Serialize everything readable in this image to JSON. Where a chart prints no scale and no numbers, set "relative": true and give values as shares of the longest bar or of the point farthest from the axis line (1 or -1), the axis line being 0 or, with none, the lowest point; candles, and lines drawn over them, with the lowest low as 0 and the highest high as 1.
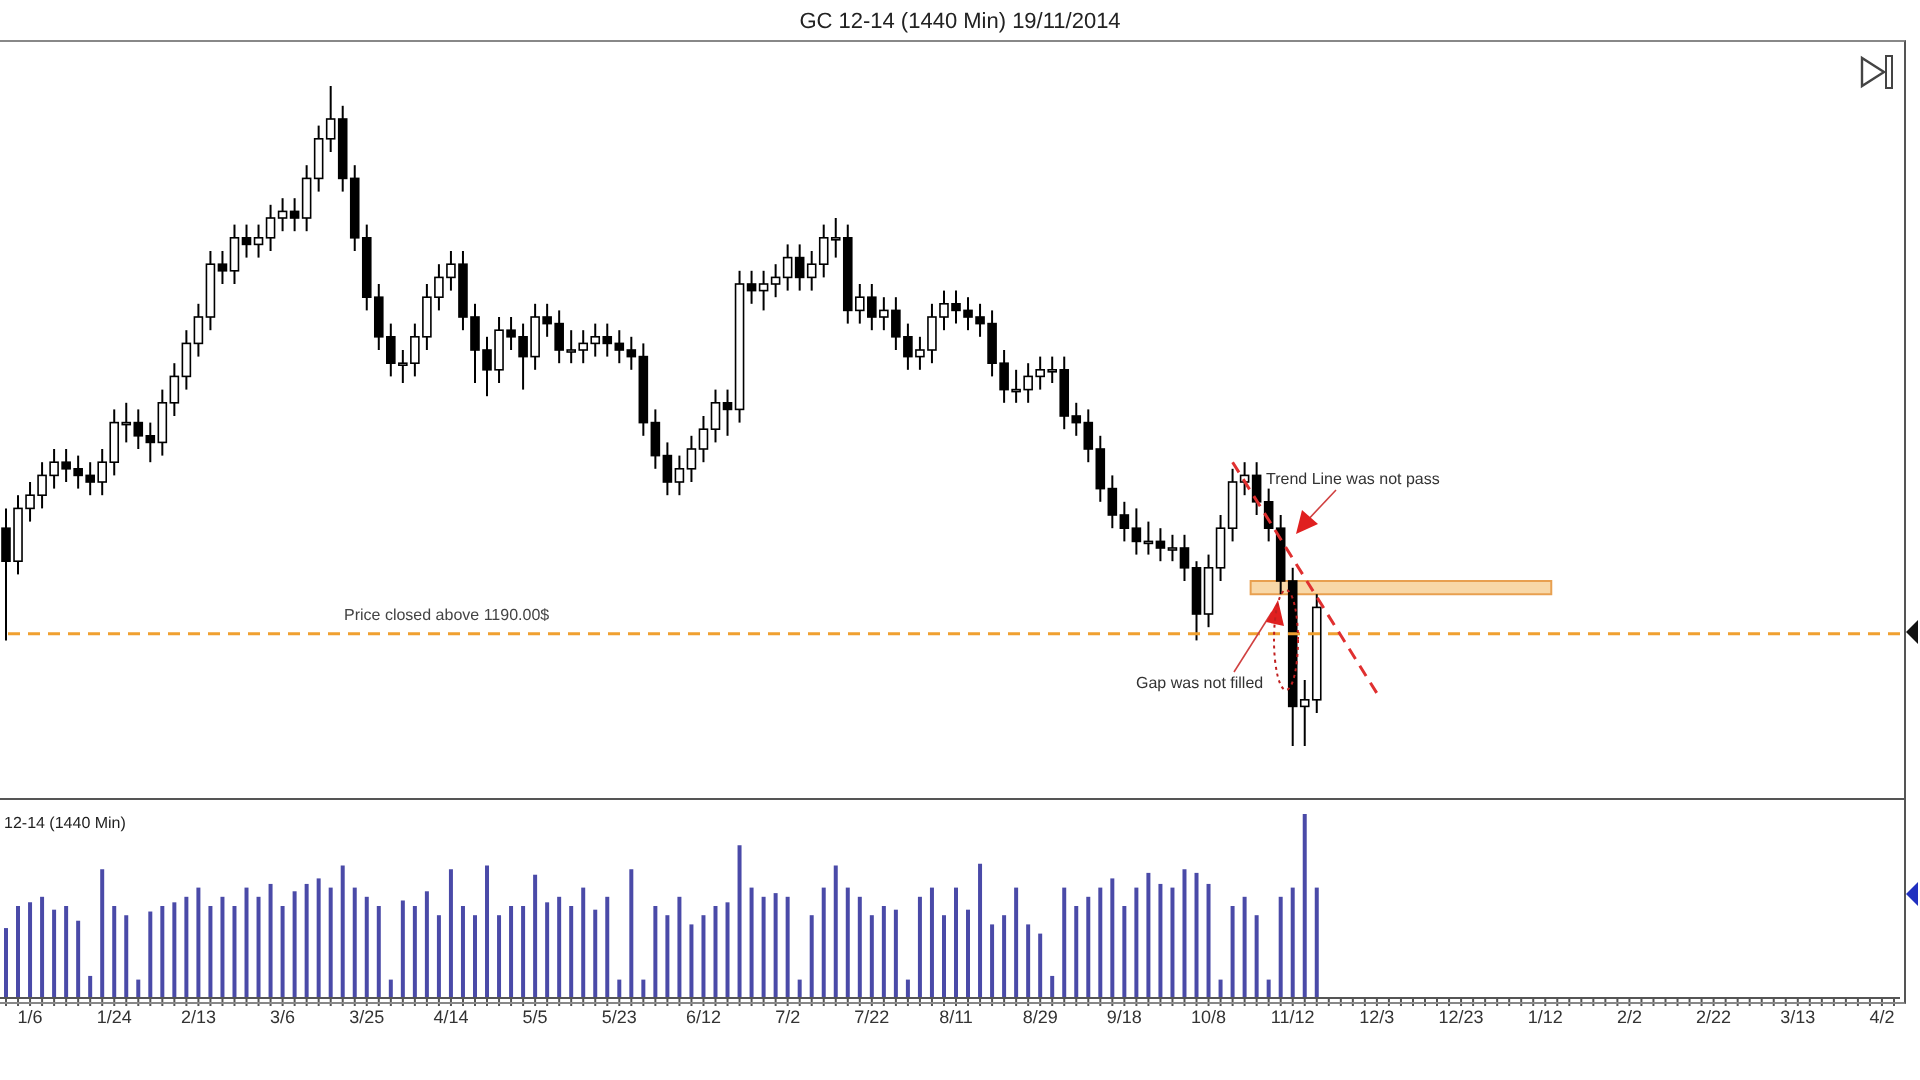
{
  "chart_data": [
    {
      "type": "candlestick",
      "title": "GC 12-14 (1440 Min)  19/11/2014",
      "relative": true,
      "tick_labels": false,
      "color": "#000000",
      "categories": [
        null,
        null,
        null,
        null,
        null,
        null,
        null,
        null,
        null,
        null,
        null,
        null,
        null,
        null,
        null,
        null,
        null,
        null,
        null,
        null,
        null,
        null,
        null,
        null,
        null,
        null,
        null,
        null,
        null,
        null,
        null,
        null,
        null,
        null,
        null,
        null,
        null,
        null,
        null,
        null,
        null,
        null,
        null,
        null,
        null,
        null,
        null,
        null,
        null,
        null,
        null,
        null,
        null,
        null,
        null,
        null,
        null,
        null,
        null,
        null,
        null,
        null,
        null,
        null,
        null,
        null,
        null,
        null,
        null,
        null,
        null,
        null,
        null,
        null,
        null,
        null,
        null,
        null,
        null,
        null,
        null,
        null,
        null,
        null,
        null,
        null,
        null,
        null,
        null,
        null,
        null,
        null,
        null,
        null,
        null,
        null,
        null,
        null,
        null,
        null,
        null,
        null,
        null,
        null,
        null,
        null,
        null,
        null,
        null,
        null,
        null,
        null,
        null,
        null,
        null,
        null,
        null,
        null,
        null,
        null,
        null,
        null,
        null,
        null,
        null,
        null,
        null,
        null,
        null,
        null,
        null,
        null,
        null,
        null,
        null,
        null,
        null,
        null,
        null,
        null,
        null,
        null,
        null,
        null,
        null,
        null,
        null,
        null,
        null,
        null,
        null,
        null,
        null,
        null,
        null,
        null,
        null,
        null
      ],
      "ohlc": [
        [
          0.33,
          0.36,
          0.16,
          0.28
        ],
        [
          0.28,
          0.38,
          0.26,
          0.36
        ],
        [
          0.36,
          0.4,
          0.34,
          0.38
        ],
        [
          0.38,
          0.43,
          0.36,
          0.41
        ],
        [
          0.41,
          0.45,
          0.39,
          0.43
        ],
        [
          0.43,
          0.45,
          0.4,
          0.42
        ],
        [
          0.42,
          0.44,
          0.39,
          0.41
        ],
        [
          0.41,
          0.43,
          0.38,
          0.4
        ],
        [
          0.4,
          0.45,
          0.38,
          0.43
        ],
        [
          0.43,
          0.51,
          0.41,
          0.49
        ],
        [
          0.49,
          0.52,
          0.46,
          0.49
        ],
        [
          0.49,
          0.51,
          0.45,
          0.47
        ],
        [
          0.47,
          0.49,
          0.43,
          0.46
        ],
        [
          0.46,
          0.54,
          0.44,
          0.52
        ],
        [
          0.52,
          0.58,
          0.5,
          0.56
        ],
        [
          0.56,
          0.63,
          0.54,
          0.61
        ],
        [
          0.61,
          0.67,
          0.59,
          0.65
        ],
        [
          0.65,
          0.75,
          0.63,
          0.73
        ],
        [
          0.73,
          0.75,
          0.7,
          0.72
        ],
        [
          0.72,
          0.79,
          0.7,
          0.77
        ],
        [
          0.77,
          0.79,
          0.74,
          0.76
        ],
        [
          0.76,
          0.79,
          0.74,
          0.77
        ],
        [
          0.77,
          0.82,
          0.75,
          0.8
        ],
        [
          0.8,
          0.83,
          0.78,
          0.81
        ],
        [
          0.81,
          0.83,
          0.78,
          0.8
        ],
        [
          0.8,
          0.88,
          0.78,
          0.86
        ],
        [
          0.86,
          0.94,
          0.84,
          0.92
        ],
        [
          0.92,
          1.0,
          0.9,
          0.95
        ],
        [
          0.95,
          0.97,
          0.84,
          0.86
        ],
        [
          0.86,
          0.88,
          0.75,
          0.77
        ],
        [
          0.77,
          0.79,
          0.66,
          0.68
        ],
        [
          0.68,
          0.7,
          0.6,
          0.62
        ],
        [
          0.62,
          0.64,
          0.56,
          0.58
        ],
        [
          0.58,
          0.6,
          0.55,
          0.58
        ],
        [
          0.58,
          0.64,
          0.56,
          0.62
        ],
        [
          0.62,
          0.7,
          0.6,
          0.68
        ],
        [
          0.68,
          0.73,
          0.66,
          0.71
        ],
        [
          0.71,
          0.75,
          0.69,
          0.73
        ],
        [
          0.73,
          0.75,
          0.63,
          0.65
        ],
        [
          0.65,
          0.67,
          0.55,
          0.6
        ],
        [
          0.6,
          0.62,
          0.53,
          0.57
        ],
        [
          0.57,
          0.65,
          0.55,
          0.63
        ],
        [
          0.63,
          0.65,
          0.6,
          0.62
        ],
        [
          0.62,
          0.64,
          0.54,
          0.59
        ],
        [
          0.59,
          0.67,
          0.57,
          0.65
        ],
        [
          0.65,
          0.67,
          0.62,
          0.64
        ],
        [
          0.64,
          0.66,
          0.58,
          0.6
        ],
        [
          0.6,
          0.63,
          0.58,
          0.6
        ],
        [
          0.6,
          0.63,
          0.58,
          0.61
        ],
        [
          0.61,
          0.64,
          0.59,
          0.62
        ],
        [
          0.62,
          0.64,
          0.59,
          0.61
        ],
        [
          0.61,
          0.63,
          0.58,
          0.6
        ],
        [
          0.6,
          0.62,
          0.57,
          0.59
        ],
        [
          0.59,
          0.61,
          0.47,
          0.49
        ],
        [
          0.49,
          0.51,
          0.42,
          0.44
        ],
        [
          0.44,
          0.46,
          0.38,
          0.4
        ],
        [
          0.4,
          0.44,
          0.38,
          0.42
        ],
        [
          0.42,
          0.47,
          0.4,
          0.45
        ],
        [
          0.45,
          0.5,
          0.43,
          0.48
        ],
        [
          0.48,
          0.54,
          0.46,
          0.52
        ],
        [
          0.52,
          0.54,
          0.47,
          0.51
        ],
        [
          0.51,
          0.72,
          0.49,
          0.7
        ],
        [
          0.7,
          0.72,
          0.67,
          0.69
        ],
        [
          0.69,
          0.72,
          0.66,
          0.7
        ],
        [
          0.7,
          0.73,
          0.68,
          0.71
        ],
        [
          0.71,
          0.76,
          0.69,
          0.74
        ],
        [
          0.74,
          0.76,
          0.69,
          0.71
        ],
        [
          0.71,
          0.75,
          0.69,
          0.73
        ],
        [
          0.73,
          0.79,
          0.71,
          0.77
        ],
        [
          0.77,
          0.8,
          0.74,
          0.77
        ],
        [
          0.77,
          0.79,
          0.64,
          0.66
        ],
        [
          0.66,
          0.7,
          0.64,
          0.68
        ],
        [
          0.68,
          0.7,
          0.63,
          0.65
        ],
        [
          0.65,
          0.68,
          0.63,
          0.66
        ],
        [
          0.66,
          0.68,
          0.6,
          0.62
        ],
        [
          0.62,
          0.64,
          0.57,
          0.59
        ],
        [
          0.59,
          0.62,
          0.57,
          0.6
        ],
        [
          0.6,
          0.67,
          0.58,
          0.65
        ],
        [
          0.65,
          0.69,
          0.63,
          0.67
        ],
        [
          0.67,
          0.69,
          0.64,
          0.66
        ],
        [
          0.66,
          0.68,
          0.63,
          0.65
        ],
        [
          0.65,
          0.67,
          0.62,
          0.64
        ],
        [
          0.64,
          0.66,
          0.56,
          0.58
        ],
        [
          0.58,
          0.6,
          0.52,
          0.54
        ],
        [
          0.54,
          0.57,
          0.52,
          0.54
        ],
        [
          0.54,
          0.58,
          0.52,
          0.56
        ],
        [
          0.56,
          0.59,
          0.54,
          0.57
        ],
        [
          0.57,
          0.59,
          0.55,
          0.57
        ],
        [
          0.57,
          0.59,
          0.48,
          0.5
        ],
        [
          0.5,
          0.52,
          0.47,
          0.49
        ],
        [
          0.49,
          0.51,
          0.43,
          0.45
        ],
        [
          0.45,
          0.47,
          0.37,
          0.39
        ],
        [
          0.39,
          0.41,
          0.33,
          0.35
        ],
        [
          0.35,
          0.37,
          0.31,
          0.33
        ],
        [
          0.33,
          0.36,
          0.29,
          0.31
        ],
        [
          0.31,
          0.34,
          0.29,
          0.31
        ],
        [
          0.31,
          0.33,
          0.28,
          0.3
        ],
        [
          0.3,
          0.32,
          0.28,
          0.3
        ],
        [
          0.3,
          0.32,
          0.25,
          0.27
        ],
        [
          0.27,
          0.28,
          0.16,
          0.2
        ],
        [
          0.2,
          0.29,
          0.18,
          0.27
        ],
        [
          0.27,
          0.35,
          0.25,
          0.33
        ],
        [
          0.33,
          0.42,
          0.31,
          0.4
        ],
        [
          0.4,
          0.43,
          0.38,
          0.41
        ],
        [
          0.41,
          0.43,
          0.35,
          0.37
        ],
        [
          0.37,
          0.39,
          0.31,
          0.33
        ],
        [
          0.33,
          0.35,
          0.23,
          0.25
        ],
        [
          0.25,
          0.27,
          0.0,
          0.06
        ],
        [
          0.06,
          0.1,
          0.0,
          0.07
        ],
        [
          0.07,
          0.23,
          0.05,
          0.21
        ],
        null,
        null,
        null,
        null,
        null,
        null,
        null,
        null,
        null,
        null,
        null,
        null,
        null,
        null,
        null,
        null,
        null,
        null,
        null,
        null,
        null,
        null,
        null,
        null,
        null,
        null,
        null,
        null,
        null,
        null,
        null,
        null,
        null,
        null,
        null,
        null,
        null,
        null,
        null,
        null,
        null,
        null,
        null,
        null,
        null,
        null,
        null,
        null
      ],
      "series": [
        {
          "type": "line",
          "color": "#e03030",
          "line_style": "dashed",
          "values": [
            null,
            null,
            null,
            null,
            null,
            null,
            null,
            null,
            null,
            null,
            null,
            null,
            null,
            null,
            null,
            null,
            null,
            null,
            null,
            null,
            null,
            null,
            null,
            null,
            null,
            null,
            null,
            null,
            null,
            null,
            null,
            null,
            null,
            null,
            null,
            null,
            null,
            null,
            null,
            null,
            null,
            null,
            null,
            null,
            null,
            null,
            null,
            null,
            null,
            null,
            null,
            null,
            null,
            null,
            null,
            null,
            null,
            null,
            null,
            null,
            null,
            null,
            null,
            null,
            null,
            null,
            null,
            null,
            null,
            null,
            null,
            null,
            null,
            null,
            null,
            null,
            null,
            null,
            null,
            null,
            null,
            null,
            null,
            null,
            null,
            null,
            null,
            null,
            null,
            null,
            null,
            null,
            null,
            null,
            null,
            null,
            null,
            null,
            null,
            null,
            null,
            null,
            0.43,
            null,
            null,
            null,
            null,
            null,
            null,
            null,
            null,
            null,
            null,
            null,
            0.08,
            null,
            null,
            null,
            null,
            null,
            null,
            null,
            null,
            null,
            null,
            null,
            null,
            null,
            null,
            null,
            null,
            null,
            null,
            null,
            null,
            null,
            null,
            null,
            null,
            null,
            null,
            null,
            null,
            null,
            null,
            null,
            null,
            null,
            null,
            null,
            null,
            null,
            null,
            null,
            null,
            null,
            null,
            null
          ]
        }
      ],
      "ref_lines": [
        {
          "axis": "y",
          "value": 0.17,
          "label": "Price closed above 1190.00$",
          "color": "#f0a030",
          "line_style": "dashed"
        }
      ],
      "bands": [
        {
          "axis": "y",
          "from": 0.23,
          "to": 0.25,
          "color": "#f8d8a8"
        }
      ],
      "annotations": [
        "Trend Line was not pass",
        "Gap was not filled"
      ]
    },
    {
      "type": "bar",
      "title": "12-14 (1440 Min)",
      "relative": true,
      "tick_labels": "x",
      "color": "#4a4aa8",
      "categories": [
        null,
        null,
        "1/6",
        null,
        null,
        null,
        null,
        null,
        null,
        "1/24",
        null,
        null,
        null,
        null,
        null,
        null,
        "2/13",
        null,
        null,
        null,
        null,
        null,
        null,
        "3/6",
        null,
        null,
        null,
        null,
        null,
        null,
        "3/25",
        null,
        null,
        null,
        null,
        null,
        null,
        "4/14",
        null,
        null,
        null,
        null,
        null,
        null,
        "5/5",
        null,
        null,
        null,
        null,
        null,
        null,
        "5/23",
        null,
        null,
        null,
        null,
        null,
        null,
        "6/12",
        null,
        null,
        null,
        null,
        null,
        null,
        "7/2",
        null,
        null,
        null,
        null,
        null,
        null,
        "7/22",
        null,
        null,
        null,
        null,
        null,
        null,
        "8/11",
        null,
        null,
        null,
        null,
        null,
        null,
        "8/29",
        null,
        null,
        null,
        null,
        null,
        null,
        "9/18",
        null,
        null,
        null,
        null,
        null,
        null,
        "10/8",
        null,
        null,
        null,
        null,
        null,
        null,
        "11/12",
        null,
        null,
        null,
        null,
        null,
        null,
        "12/3",
        null,
        null,
        null,
        null,
        null,
        null,
        "12/23",
        null,
        null,
        null,
        null,
        null,
        null,
        "1/12",
        null,
        null,
        null,
        null,
        null,
        null,
        "2/2",
        null,
        null,
        null,
        null,
        null,
        null,
        "2/22",
        null,
        null,
        null,
        null,
        null,
        null,
        "3/13",
        null,
        null,
        null,
        null,
        null,
        null,
        "4/2",
        null
      ],
      "values": [
        0.38,
        0.5,
        0.52,
        0.55,
        0.48,
        0.5,
        0.42,
        0.12,
        0.7,
        0.5,
        0.45,
        0.1,
        0.47,
        0.5,
        0.52,
        0.55,
        0.6,
        0.5,
        0.55,
        0.5,
        0.6,
        0.55,
        0.62,
        0.5,
        0.58,
        0.62,
        0.65,
        0.6,
        0.72,
        0.6,
        0.55,
        0.5,
        0.1,
        0.53,
        0.5,
        0.58,
        0.45,
        0.7,
        0.5,
        0.45,
        0.72,
        0.45,
        0.5,
        0.5,
        0.67,
        0.52,
        0.55,
        0.5,
        0.6,
        0.48,
        0.55,
        0.1,
        0.7,
        0.1,
        0.5,
        0.45,
        0.55,
        0.4,
        0.45,
        0.5,
        0.52,
        0.83,
        0.6,
        0.55,
        0.57,
        0.55,
        0.1,
        0.45,
        0.6,
        0.72,
        0.6,
        0.55,
        0.45,
        0.5,
        0.48,
        0.1,
        0.55,
        0.6,
        0.45,
        0.6,
        0.48,
        0.73,
        0.4,
        0.45,
        0.6,
        0.4,
        0.35,
        0.12,
        0.6,
        0.5,
        0.55,
        0.6,
        0.65,
        0.5,
        0.6,
        0.68,
        0.62,
        0.6,
        0.7,
        0.68,
        0.62,
        0.1,
        0.5,
        0.55,
        0.45,
        0.1,
        0.55,
        0.6,
        1.0,
        0.6,
        null,
        null,
        null,
        null,
        null,
        null,
        null,
        null,
        null,
        null,
        null,
        null,
        null,
        null,
        null,
        null,
        null,
        null,
        null,
        null,
        null,
        null,
        null,
        null,
        null,
        null,
        null,
        null,
        null,
        null,
        null,
        null,
        null,
        null,
        null,
        null,
        null,
        null,
        null,
        null,
        null,
        null,
        null,
        null,
        null,
        null,
        null,
        null
      ]
    }
  ]
}
